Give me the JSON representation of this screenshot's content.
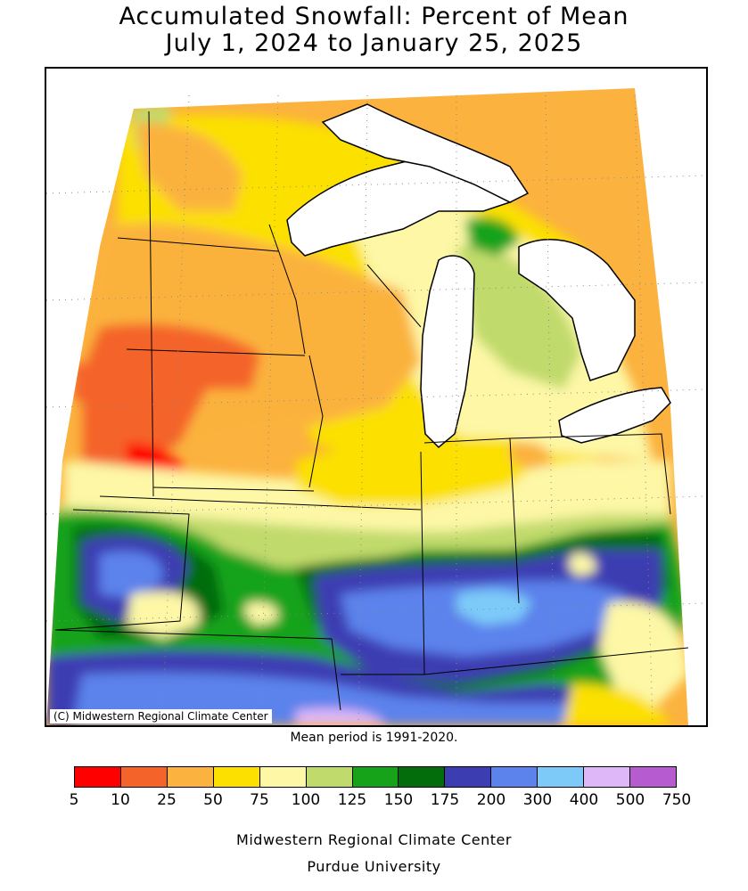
{
  "title": {
    "line1": "Accumulated Snowfall: Percent of Mean",
    "line2": "July 1, 2024 to January 25, 2025"
  },
  "map": {
    "copyright": "(C) Midwestern Regional Climate Center",
    "region": "Upper Midwest and Ohio Valley",
    "water_color": "#ffffff"
  },
  "note": "Mean period is 1991-2020.",
  "legend": {
    "breaks": [
      "5",
      "10",
      "25",
      "50",
      "75",
      "100",
      "125",
      "150",
      "175",
      "200",
      "300",
      "400",
      "500",
      "750"
    ],
    "colors": [
      "#ff0000",
      "#f4642a",
      "#fbb23e",
      "#fbe000",
      "#fdf7a6",
      "#c1da6c",
      "#16a31a",
      "#036d0b",
      "#3d3db2",
      "#5c82ec",
      "#7dcaf9",
      "#ddb7f7",
      "#b65cd0"
    ]
  },
  "footer": {
    "line1": "Midwestern Regional Climate Center",
    "line2": "Purdue University"
  }
}
